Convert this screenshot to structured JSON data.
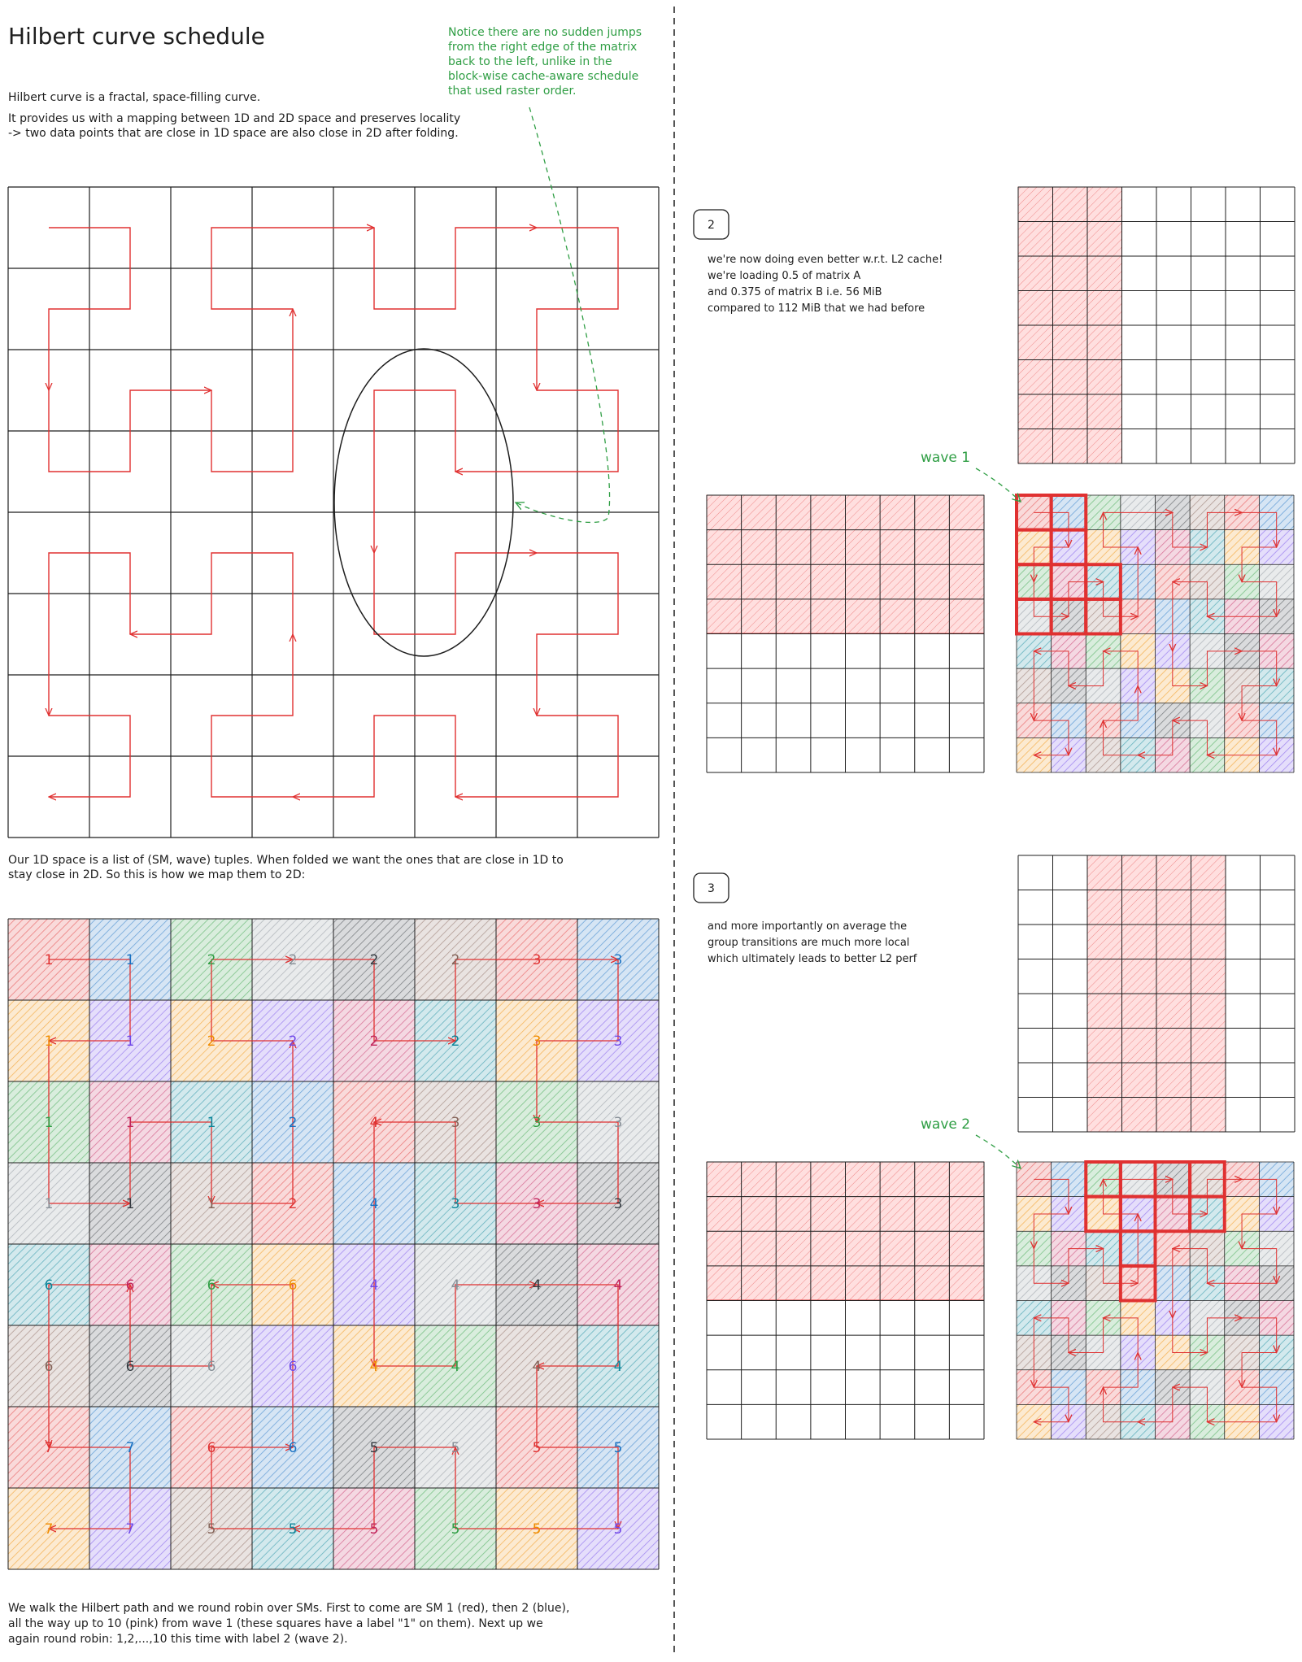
{
  "header": {
    "title": "Hilbert curve schedule"
  },
  "intro": [
    "Hilbert curve is a fractal, space-filling curve.",
    "It provides us with a mapping between 1D and 2D space and preserves locality",
    "-> two data points that are close in 1D space are also close in 2D after folding."
  ],
  "note": [
    "Notice there are no sudden jumps",
    "from the right edge of the matrix",
    "back to the left, unlike in the",
    "block-wise cache-aware schedule",
    "that used raster order."
  ],
  "mapping_text": [
    "Our 1D space is a list of (SM, wave) tuples. When folded we want the ones that are close in 1D to",
    "stay close in 2D.  So this is how we map them to 2D:"
  ],
  "grid_labels": [
    [
      1,
      1,
      2,
      2,
      2,
      2,
      3,
      3
    ],
    [
      1,
      1,
      2,
      2,
      2,
      2,
      3,
      3
    ],
    [
      1,
      1,
      1,
      2,
      4,
      3,
      3,
      3
    ],
    [
      1,
      1,
      1,
      2,
      4,
      3,
      3,
      3
    ],
    [
      6,
      6,
      6,
      6,
      4,
      4,
      4,
      4
    ],
    [
      6,
      6,
      6,
      6,
      4,
      4,
      4,
      4
    ],
    [
      7,
      7,
      6,
      6,
      5,
      5,
      5,
      5
    ],
    [
      7,
      7,
      5,
      5,
      5,
      5,
      5,
      5
    ]
  ],
  "footer_text": [
    "We walk the Hilbert path and we round robin over SMs. First to come are SM 1 (red), then 2 (blue),",
    "all the way up to 10 (pink) from wave 1 (these squares have a label \"1\" on them). Next up we",
    "again round robin: 1,2,...,10 this time with label 2 (wave 2)."
  ],
  "step2": {
    "number": 2,
    "text": [
      "we're now doing even better w.r.t. L2 cache!",
      "we're loading 0.5 of matrix A",
      "and 0.375 of matrix B i.e. 56 MiB",
      "compared to 112 MiB that we had before"
    ],
    "wave_label": "wave 1"
  },
  "step3": {
    "number": 3,
    "text": [
      "and more importantly on average the",
      "group transitions are much more local",
      "which ultimately leads to better L2 perf"
    ],
    "wave_label": "wave 2"
  }
}
